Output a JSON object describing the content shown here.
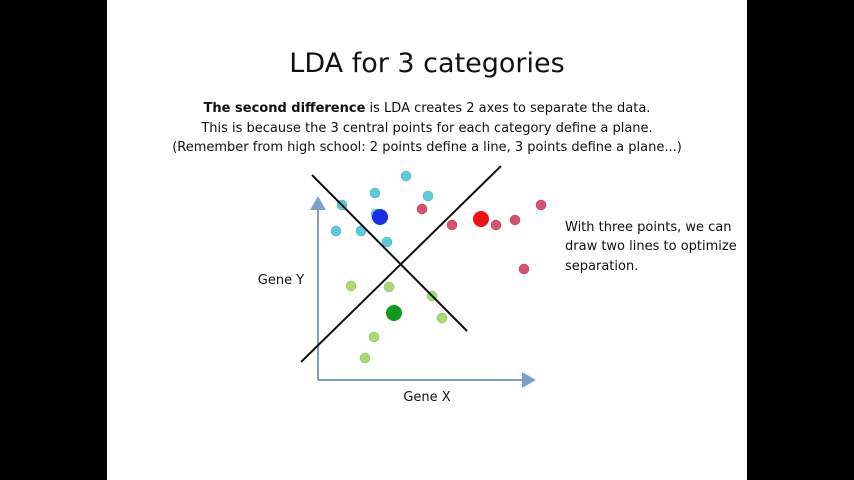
{
  "slide": {
    "title": "LDA for 3 categories",
    "body": {
      "bold": "The second difference",
      "lines": [
        " is LDA creates 2 axes to separate the data.",
        "This is because the 3 central points for each category define a plane.",
        "(Remember from high school: 2 points define a line, 3 points define a plane...)"
      ]
    },
    "diagram": {
      "y_label": "Gene Y",
      "x_label": "Gene X"
    },
    "note": [
      "With three points, we can",
      "draw two lines to optimize",
      "separation."
    ]
  }
}
